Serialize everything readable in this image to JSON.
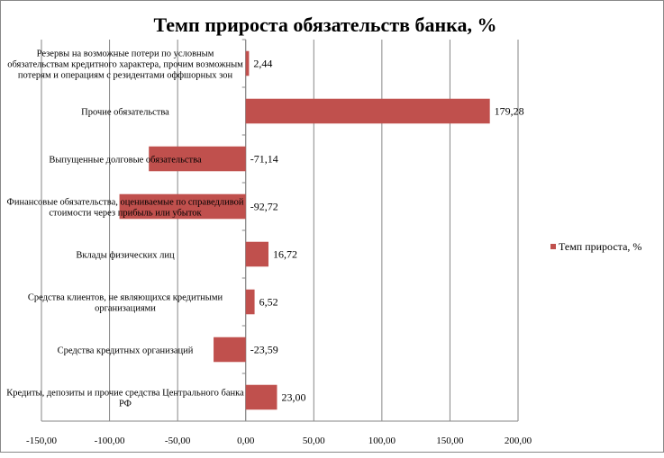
{
  "chart_data": {
    "type": "bar",
    "orientation": "horizontal",
    "title": "Темп прироста обязательств банка, %",
    "categories": [
      [
        "Резервы на возможные потери по условным",
        "обязательствам кредитного характера, прочим возможным",
        "потерям и операциям с резидентами оффшорных зон"
      ],
      [
        "Прочие обязательства"
      ],
      [
        "Выпущенные долговые обязательства"
      ],
      [
        "Финансовые обязательства, оцениваемые по справедливой",
        "стоимости через прибыль или убыток"
      ],
      [
        "Вклады физических лиц"
      ],
      [
        "Средства клиентов, не являющихся кредитными",
        "организациями"
      ],
      [
        "Средства кредитных организаций"
      ],
      [
        "Кредиты, депозиты и прочие средства Центрального банка",
        "РФ"
      ]
    ],
    "values": [
      2.44,
      179.28,
      -71.14,
      -92.72,
      16.72,
      6.52,
      -23.59,
      23.0
    ],
    "value_labels": [
      "2,44",
      "179,28",
      "-71,14",
      "-92,72",
      "16,72",
      "6,52",
      "-23,59",
      "23,00"
    ],
    "xlim": [
      -150,
      200
    ],
    "xticks": [
      -150,
      -100,
      -50,
      0,
      50,
      100,
      150,
      200
    ],
    "xtick_labels": [
      "-150,00",
      "-100,00",
      "-50,00",
      "0,00",
      "50,00",
      "100,00",
      "150,00",
      "200,00"
    ],
    "grid": true,
    "legend": {
      "label": "Темп прироста, %",
      "placement": "right"
    },
    "colors": {
      "bar": "#c0504d",
      "grid": "#868686"
    }
  }
}
